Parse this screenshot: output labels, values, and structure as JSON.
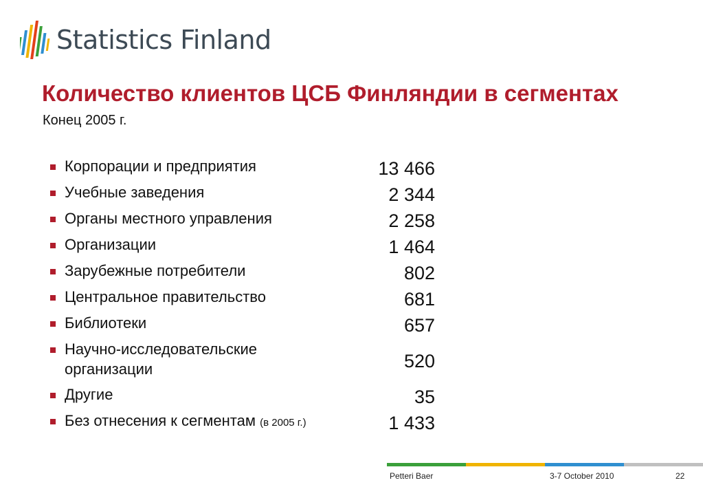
{
  "logo": {
    "text": "Statistics Finland"
  },
  "title": "Количество клиентов ЦСБ Финляндии в сегментах",
  "subtitle": "Конец 2005 г.",
  "segments": [
    {
      "label": "Корпорации и предприятия",
      "value": "13 466"
    },
    {
      "label": "Учебные заведения",
      "value": "2 344"
    },
    {
      "label": "Органы местного управления",
      "value": "2 258"
    },
    {
      "label": "Организации",
      "value": "1 464"
    },
    {
      "label": "Зарубежные потребители",
      "value": "802"
    },
    {
      "label": "Центральное правительство",
      "value": "681"
    },
    {
      "label": "Библиотеки",
      "value": "657"
    },
    {
      "label": "Научно-исследовательские организации",
      "value": "520"
    },
    {
      "label": "Другие",
      "value": "35"
    },
    {
      "label": "Без отнесения к сегментам",
      "note": "(в 2005 г.)",
      "value": "1 433"
    }
  ],
  "footer": {
    "author": "Petteri Baer",
    "date": "3-7 October 2010",
    "page": "22",
    "bar_colors": [
      "#3aa03a",
      "#f0b400",
      "#2f8fd0",
      "#c0c0c0"
    ]
  },
  "colors": {
    "accent": "#b01d2c"
  }
}
